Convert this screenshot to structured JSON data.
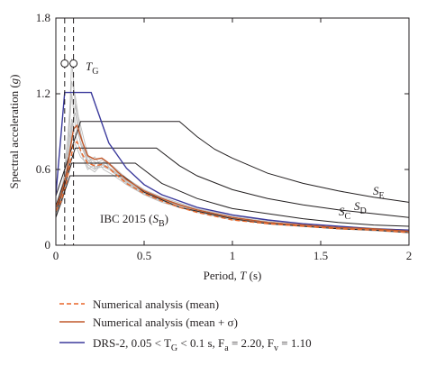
{
  "chart_data": {
    "type": "line",
    "xlabel": "Period, ",
    "xlabel_symbol": "T",
    "xlabel_unit": " (s)",
    "ylabel": "Spectral acceleration (",
    "ylabel_symbol": "g",
    "ylabel_end": ")",
    "xlim": [
      0,
      2
    ],
    "ylim": [
      0,
      1.8
    ],
    "x_ticks": [
      "0",
      "0.5",
      "1",
      "1.5",
      "2"
    ],
    "y_ticks": [
      "0",
      "0.6",
      "1.2",
      "1.8"
    ],
    "grid": false,
    "legend_position": "bottom",
    "annotations": {
      "tg_main": "T",
      "tg_sub": "G",
      "tg_lines_x": [
        0.05,
        0.1
      ],
      "se_main": "S",
      "se_sub": "E",
      "sc_main": "S",
      "sc_sub": "C",
      "sd_main": "S",
      "sd_sub": "D",
      "ibc_prefix": "IBC 2015 (",
      "ibc_main": "S",
      "ibc_sub": "B",
      "ibc_suffix": ")"
    },
    "legend": [
      {
        "text": "Numerical analysis (mean)",
        "color": "#e8672a",
        "dash": true
      },
      {
        "text": "Numerical analysis (mean + σ)",
        "color": "#c0582b",
        "dash": false
      },
      {
        "text": "DRS-2, 0.05 < T",
        "color": "#3b3a9c",
        "dash": false,
        "sub1": "G",
        "mid": " < 0.1 s, F",
        "sub2": "a",
        "mid2": " = 2.20, F",
        "sub3": "v",
        "end": " = 1.10"
      }
    ],
    "colors": {
      "ibc": "#231f20",
      "records": "#bdbdbd",
      "mean": "#e8672a",
      "mean_sigma": "#c0582b",
      "drs": "#3b3a9c",
      "tg_lines": "#231f20"
    },
    "series": [
      {
        "name": "S",
        "role": "ibc",
        "x": [
          0,
          0.14,
          0.7,
          0.8,
          0.9,
          1.0,
          1.2,
          1.4,
          1.6,
          1.8,
          2.0
        ],
        "y": [
          0.39,
          0.98,
          0.98,
          0.86,
          0.76,
          0.69,
          0.57,
          0.49,
          0.43,
          0.38,
          0.34
        ]
      },
      {
        "name": "S",
        "role": "ibc",
        "x": [
          0,
          0.11,
          0.57,
          0.7,
          0.8,
          1.0,
          1.2,
          1.4,
          1.6,
          1.8,
          2.0
        ],
        "y": [
          0.31,
          0.77,
          0.77,
          0.63,
          0.55,
          0.44,
          0.37,
          0.32,
          0.28,
          0.25,
          0.22
        ]
      },
      {
        "name": "S",
        "role": "ibc",
        "x": [
          0,
          0.09,
          0.45,
          0.6,
          0.8,
          1.0,
          1.2,
          1.4,
          1.6,
          1.8,
          2.0
        ],
        "y": [
          0.26,
          0.65,
          0.65,
          0.49,
          0.37,
          0.29,
          0.25,
          0.21,
          0.18,
          0.16,
          0.15
        ]
      },
      {
        "name": "S",
        "role": "ibc",
        "x": [
          0,
          0.08,
          0.38,
          0.5,
          0.7,
          1.0,
          1.2,
          1.4,
          1.6,
          1.8,
          2.0
        ],
        "y": [
          0.22,
          0.55,
          0.55,
          0.42,
          0.3,
          0.21,
          0.17,
          0.15,
          0.13,
          0.12,
          0.1
        ]
      },
      {
        "name": "DRS-2",
        "role": "drs",
        "x": [
          0,
          0.05,
          0.2,
          0.3,
          0.4,
          0.5,
          0.6,
          0.8,
          1.0,
          1.2,
          1.4,
          1.6,
          1.8,
          2.0
        ],
        "y": [
          0.4,
          1.21,
          1.21,
          0.81,
          0.61,
          0.48,
          0.4,
          0.3,
          0.24,
          0.2,
          0.17,
          0.15,
          0.13,
          0.12
        ]
      },
      {
        "name": "Numerical analysis (mean)",
        "role": "mean",
        "x": [
          0,
          0.03,
          0.06,
          0.08,
          0.1,
          0.12,
          0.15,
          0.18,
          0.22,
          0.26,
          0.3,
          0.35,
          0.4,
          0.5,
          0.6,
          0.7,
          0.8,
          1.0,
          1.2,
          1.4,
          1.6,
          1.8,
          2.0
        ],
        "y": [
          0.27,
          0.35,
          0.5,
          0.65,
          0.8,
          0.82,
          0.72,
          0.65,
          0.63,
          0.64,
          0.61,
          0.55,
          0.49,
          0.41,
          0.35,
          0.3,
          0.26,
          0.2,
          0.17,
          0.15,
          0.13,
          0.12,
          0.1
        ]
      },
      {
        "name": "Numerical analysis (mean + σ)",
        "role": "mean_sigma",
        "x": [
          0,
          0.03,
          0.06,
          0.08,
          0.1,
          0.12,
          0.15,
          0.18,
          0.22,
          0.26,
          0.3,
          0.35,
          0.4,
          0.5,
          0.6,
          0.7,
          0.8,
          1.0,
          1.2,
          1.4,
          1.6,
          1.8,
          2.0
        ],
        "y": [
          0.3,
          0.4,
          0.57,
          0.75,
          0.92,
          0.95,
          0.82,
          0.71,
          0.68,
          0.69,
          0.65,
          0.58,
          0.52,
          0.43,
          0.37,
          0.32,
          0.28,
          0.22,
          0.18,
          0.16,
          0.14,
          0.13,
          0.11
        ]
      }
    ],
    "records": [
      {
        "x": [
          0,
          0.04,
          0.07,
          0.09,
          0.11,
          0.14,
          0.18,
          0.22,
          0.27,
          0.32,
          0.4,
          0.5,
          0.6,
          0.8,
          1.0,
          1.3,
          1.6,
          2.0
        ],
        "y": [
          0.25,
          0.4,
          0.7,
          1.48,
          1.1,
          0.85,
          0.7,
          0.66,
          0.63,
          0.6,
          0.5,
          0.42,
          0.36,
          0.27,
          0.21,
          0.17,
          0.14,
          0.11
        ]
      },
      {
        "x": [
          0,
          0.04,
          0.07,
          0.09,
          0.11,
          0.14,
          0.18,
          0.22,
          0.27,
          0.32,
          0.4,
          0.5,
          0.6,
          0.8,
          1.0,
          1.3,
          1.6,
          2.0
        ],
        "y": [
          0.28,
          0.45,
          0.9,
          1.3,
          1.18,
          0.9,
          0.62,
          0.58,
          0.66,
          0.62,
          0.52,
          0.43,
          0.37,
          0.28,
          0.22,
          0.17,
          0.14,
          0.12
        ]
      },
      {
        "x": [
          0,
          0.04,
          0.07,
          0.09,
          0.11,
          0.14,
          0.18,
          0.22,
          0.27,
          0.32,
          0.4,
          0.5,
          0.6,
          0.8,
          1.0,
          1.3,
          1.6,
          2.0
        ],
        "y": [
          0.24,
          0.38,
          0.62,
          0.95,
          1.05,
          0.8,
          0.66,
          0.7,
          0.6,
          0.56,
          0.48,
          0.4,
          0.34,
          0.26,
          0.2,
          0.16,
          0.13,
          0.1
        ]
      },
      {
        "x": [
          0,
          0.04,
          0.07,
          0.09,
          0.11,
          0.14,
          0.18,
          0.22,
          0.27,
          0.32,
          0.4,
          0.5,
          0.6,
          0.8,
          1.0,
          1.3,
          1.6,
          2.0
        ],
        "y": [
          0.3,
          0.5,
          0.75,
          1.0,
          0.88,
          0.74,
          0.6,
          0.64,
          0.68,
          0.58,
          0.5,
          0.41,
          0.35,
          0.27,
          0.22,
          0.17,
          0.14,
          0.11
        ]
      },
      {
        "x": [
          0,
          0.04,
          0.07,
          0.09,
          0.11,
          0.14,
          0.18,
          0.22,
          0.27,
          0.32,
          0.4,
          0.5,
          0.6,
          0.8,
          1.0,
          1.3,
          1.6,
          2.0
        ],
        "y": [
          0.26,
          0.42,
          0.66,
          0.9,
          1.12,
          0.95,
          0.72,
          0.61,
          0.62,
          0.59,
          0.49,
          0.4,
          0.35,
          0.26,
          0.21,
          0.16,
          0.13,
          0.1
        ]
      },
      {
        "x": [
          0,
          0.04,
          0.07,
          0.09,
          0.11,
          0.14,
          0.18,
          0.22,
          0.27,
          0.32,
          0.4,
          0.5,
          0.6,
          0.8,
          1.0,
          1.3,
          1.6,
          2.0
        ],
        "y": [
          0.27,
          0.44,
          0.8,
          1.2,
          0.95,
          0.82,
          0.68,
          0.62,
          0.64,
          0.6,
          0.51,
          0.42,
          0.36,
          0.27,
          0.22,
          0.17,
          0.14,
          0.11
        ]
      },
      {
        "x": [
          0,
          0.04,
          0.07,
          0.09,
          0.11,
          0.14,
          0.18,
          0.22,
          0.27,
          0.32,
          0.4,
          0.5,
          0.6,
          0.8,
          1.0,
          1.3,
          1.6,
          2.0
        ],
        "y": [
          0.23,
          0.36,
          0.58,
          0.85,
          0.8,
          0.7,
          0.64,
          0.6,
          0.66,
          0.63,
          0.53,
          0.44,
          0.38,
          0.29,
          0.23,
          0.18,
          0.15,
          0.12
        ]
      }
    ]
  }
}
